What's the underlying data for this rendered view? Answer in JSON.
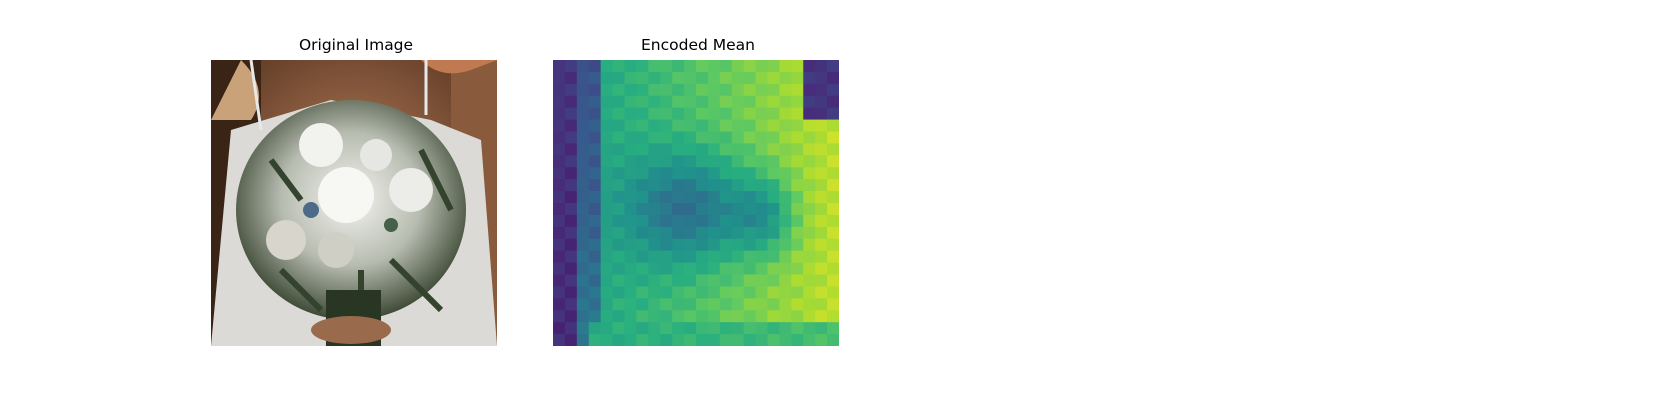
{
  "panels": [
    {
      "title": "Original Image"
    },
    {
      "title": "Encoded Mean"
    }
  ],
  "colors": {
    "background": "#ffffff",
    "viridis": [
      "#440154",
      "#472d7b",
      "#3b528b",
      "#2c728e",
      "#21918c",
      "#28ae80",
      "#5ec962",
      "#addc30",
      "#fde725"
    ]
  }
}
